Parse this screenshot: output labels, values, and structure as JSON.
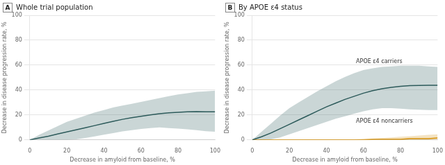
{
  "chart_data": [
    {
      "type": "line",
      "panel_label": "A",
      "title": "Whole trial population",
      "xlabel": "Decrease in amyloid from baseline, %",
      "ylabel": "Decrease in disease progression rate, %",
      "x": [
        0,
        5,
        10,
        15,
        20,
        25,
        30,
        35,
        40,
        45,
        50,
        55,
        60,
        65,
        70,
        75,
        80,
        85,
        90,
        95,
        100
      ],
      "series": [
        {
          "color": "#2d5a5a",
          "values": [
            0,
            1.5,
            3.0,
            4.7,
            6.4,
            8.1,
            9.8,
            11.5,
            13.2,
            14.9,
            16.5,
            17.8,
            19.0,
            20.1,
            21.0,
            21.7,
            22.2,
            22.5,
            22.7,
            22.6,
            22.5
          ],
          "lower": [
            0,
            0.0,
            0.0,
            0.0,
            0.0,
            0.5,
            1.5,
            2.8,
            4.2,
            5.5,
            6.8,
            7.8,
            8.8,
            9.5,
            10.0,
            9.5,
            9.0,
            8.5,
            7.8,
            7.0,
            6.5
          ],
          "upper": [
            0,
            4.0,
            7.5,
            11.0,
            14.5,
            17.0,
            19.5,
            22.0,
            24.0,
            26.0,
            27.5,
            29.0,
            30.5,
            32.0,
            33.5,
            35.0,
            36.5,
            37.5,
            38.5,
            39.0,
            39.5
          ]
        }
      ],
      "xlim": [
        0,
        100
      ],
      "ylim": [
        0,
        100
      ],
      "xticks": [
        0,
        20,
        40,
        60,
        80,
        100
      ],
      "yticks": [
        0,
        20,
        40,
        60,
        80,
        100
      ],
      "grid": true
    },
    {
      "type": "line",
      "panel_label": "B",
      "title": "By APOE ε4 status",
      "xlabel": "Decrease in amyloid from baseline, %",
      "ylabel": "Decrease in disease progression rate, %",
      "x": [
        0,
        5,
        10,
        15,
        20,
        25,
        30,
        35,
        40,
        45,
        50,
        55,
        60,
        65,
        70,
        75,
        80,
        85,
        90,
        95,
        100
      ],
      "series": [
        {
          "color": "#2d5a5a",
          "values": [
            0,
            2.5,
            5.5,
            9.0,
            12.5,
            16.0,
            19.5,
            23.0,
            26.5,
            29.5,
            32.5,
            35.0,
            37.5,
            39.5,
            41.0,
            42.2,
            43.0,
            43.5,
            43.7,
            43.8,
            43.8
          ],
          "lower": [
            0,
            0.0,
            0.5,
            2.0,
            4.5,
            7.0,
            9.5,
            12.0,
            14.5,
            17.0,
            19.0,
            21.0,
            23.0,
            24.5,
            25.5,
            25.5,
            25.0,
            24.5,
            24.2,
            24.0,
            24.0
          ],
          "upper": [
            0,
            6.5,
            13.0,
            19.5,
            25.5,
            30.0,
            34.5,
            39.0,
            43.0,
            47.0,
            50.5,
            53.5,
            56.0,
            57.5,
            58.5,
            59.0,
            59.5,
            59.5,
            59.5,
            59.0,
            58.5
          ]
        },
        {
          "color": "#d4900a",
          "values": [
            0,
            0.0,
            0.0,
            0.0,
            0.0,
            0.0,
            0.0,
            0.0,
            0.0,
            0.0,
            0.0,
            0.0,
            0.0,
            0.5,
            0.5,
            0.5,
            0.5,
            1.0,
            1.0,
            1.0,
            1.5
          ],
          "lower": [
            0,
            0.0,
            0.0,
            0.0,
            0.0,
            0.0,
            0.0,
            0.0,
            0.0,
            0.0,
            0.0,
            0.0,
            0.0,
            0.0,
            0.0,
            0.0,
            0.0,
            0.0,
            0.0,
            0.0,
            0.0
          ],
          "upper": [
            0,
            0.0,
            0.0,
            0.0,
            0.0,
            0.0,
            0.5,
            0.5,
            0.5,
            0.5,
            0.5,
            0.5,
            1.0,
            1.0,
            1.5,
            2.0,
            2.5,
            3.0,
            3.5,
            4.0,
            4.5
          ]
        }
      ],
      "annotations": [
        "APOE ε4 carriers",
        "APOE ε4 noncarriers"
      ],
      "xlim": [
        0,
        100
      ],
      "ylim": [
        0,
        100
      ],
      "xticks": [
        0,
        20,
        40,
        60,
        80,
        100
      ],
      "yticks": [
        0,
        20,
        40,
        60,
        80,
        100
      ],
      "grid": true
    }
  ]
}
